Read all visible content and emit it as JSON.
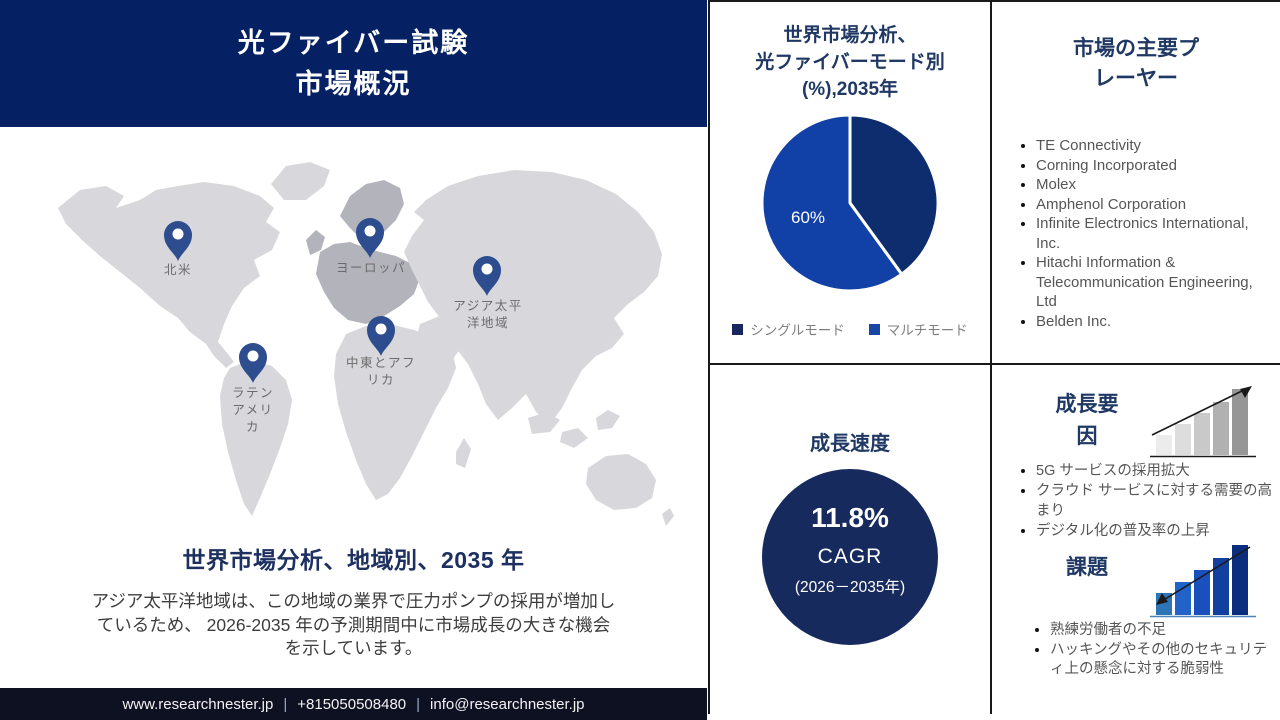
{
  "colors": {
    "header_bg": "#052164",
    "title_navy": "#1f3864",
    "pie_single_mode": "#0d2d6e",
    "pie_multi_mode": "#1141a6",
    "cagr_circle_bg": "#162a5e",
    "footer_bg": "#0e1122",
    "map_pin": "#2d4d8e",
    "map_land": "#d8d8dc",
    "map_land_europe": "#b3b3bc"
  },
  "header": {
    "title": "光ファイバー試験\n市場概況"
  },
  "map": {
    "regions": [
      {
        "label": "北米"
      },
      {
        "label": "ヨーロッパ"
      },
      {
        "label": "アジア太平\n洋地域"
      },
      {
        "label": "中東とアフ\nリカ"
      },
      {
        "label": "ラテン\nアメリ\nカ"
      }
    ],
    "subtitle": "世界市場分析、地域別、2035 年",
    "description": "アジア太平洋地域は、この地域の業界で圧力ポンプの採用が増加しているため、 2026-2035 年の予測期間中に市場成長の大きな機会を示しています。"
  },
  "footer": {
    "website": "www.researchnester.jp",
    "separator": "|",
    "phone": "+815050508480",
    "email": "info@researchnester.jp"
  },
  "pie_section": {
    "title": "世界市場分析、\n光ファイバーモード別\n(%),2035年",
    "slice_label": "60%",
    "legend": [
      {
        "label": "シングルモード",
        "color": "#17265d"
      },
      {
        "label": "マルチモード",
        "color": "#1846a5"
      }
    ]
  },
  "chart_data": [
    {
      "type": "pie",
      "title": "世界市場分析、光ファイバーモード別 (%),2035年",
      "labels": [
        "シングルモード",
        "マルチモード"
      ],
      "values": [
        40,
        60
      ],
      "unit": "%",
      "colors": [
        "#0d2d6e",
        "#1141a6"
      ],
      "data_labels": [
        "",
        "60%"
      ],
      "legend_position": "bottom",
      "start_angle_deg": 0,
      "direction": "clockwise"
    },
    {
      "type": "kpi",
      "title": "成長速度",
      "value": "11.8%",
      "metric": "CAGR",
      "period": "(2026－2035年)"
    }
  ],
  "players": {
    "title": "市場の主要プ\nレーヤー",
    "items": [
      "TE Connectivity",
      "Corning Incorporated",
      "Molex",
      "Amphenol Corporation",
      "Infinite Electronics International, Inc.",
      "Hitachi Information & Telecommunication Engineering, Ltd",
      "Belden Inc."
    ]
  },
  "growth": {
    "title": "成長速度",
    "rate": "11.8%",
    "metric": "CAGR",
    "period": "(2026－2035年)"
  },
  "growth_factors": {
    "title": "成長要\n因",
    "items": [
      "5G サービスの採用拡大",
      "クラウド サービスに対する需要の高まり",
      "デジタル化の普及率の上昇"
    ]
  },
  "challenges": {
    "title": "課題",
    "items": [
      "熟練労働者の不足",
      "ハッキングやその他のセキュリティ上の懸念に対する脆弱性"
    ]
  }
}
